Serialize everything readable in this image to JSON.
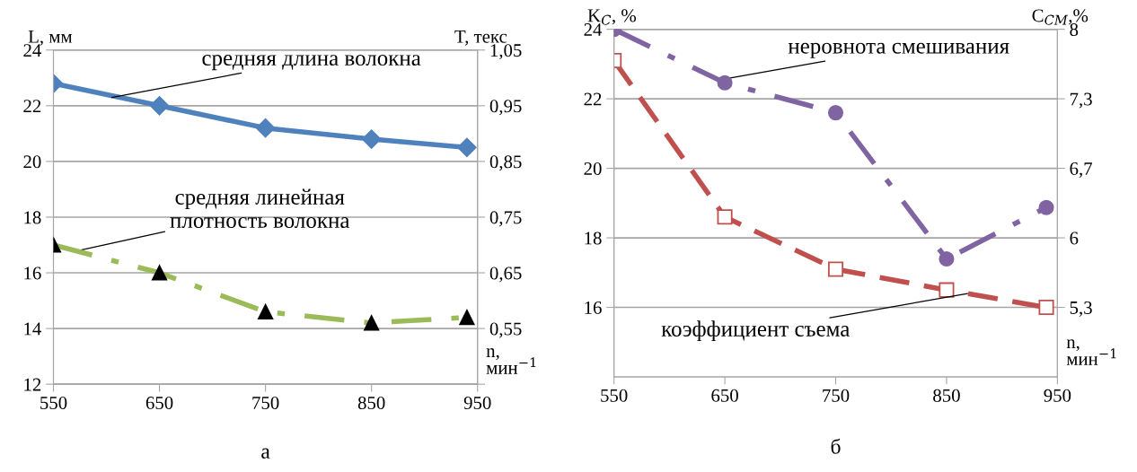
{
  "chart_data": [
    {
      "type": "line",
      "title": "а",
      "xlabel": "n,\nмин$^{−1}$",
      "ylabel": "L, мм",
      "y2label": "T, текс",
      "x": [
        550,
        650,
        750,
        850,
        940
      ],
      "xlim": [
        550,
        950
      ],
      "xticks": [
        550,
        650,
        750,
        850,
        950
      ],
      "ylim": [
        12,
        24
      ],
      "yticks": [
        12,
        14,
        16,
        18,
        20,
        22,
        24
      ],
      "y2lim": [
        0.45,
        1.05
      ],
      "y2ticks": [
        {
          "value": 0.45,
          "label": null
        },
        {
          "value": 0.55,
          "label": "0,55"
        },
        {
          "value": 0.65,
          "label": "0,65"
        },
        {
          "value": 0.75,
          "label": "0,75"
        },
        {
          "value": 0.85,
          "label": "0,85"
        },
        {
          "value": 0.95,
          "label": "0,95"
        },
        {
          "value": 1.05,
          "label": "1,05"
        }
      ],
      "grid": "y",
      "legend": false,
      "series": [
        {
          "color": "#4f81bd",
          "values": [
            22.8,
            22.0,
            21.2,
            20.8,
            20.5
          ],
          "marker": "diamond",
          "line_style": "solid"
        },
        {
          "color": "#9bbb59",
          "values": [
            0.7,
            0.65,
            0.58,
            0.56,
            0.57
          ],
          "marker": "triangle",
          "line_style": "dashdot",
          "axis": "y2"
        }
      ],
      "annotations": [
        {
          "text": "средняя длина волокна",
          "x": 605,
          "y": 22.3
        },
        {
          "text": "средняя линейная\nплотность волокна",
          "x": 574,
          "y": 16.8
        }
      ]
    },
    {
      "type": "line",
      "title": "б",
      "xlabel": "n,\nмин$^{−1}$",
      "ylabel": "K$_{С}$, %",
      "y2label": "C$_{СМ}$,%",
      "x": [
        550,
        650,
        750,
        850,
        940
      ],
      "xlim": [
        550,
        950
      ],
      "xticks": [
        550,
        650,
        750,
        850,
        950
      ],
      "ylim": [
        14,
        24
      ],
      "yticks": [
        16,
        18,
        20,
        22,
        24
      ],
      "y2lim": [
        4.625,
        8
      ],
      "y2ticks": [
        {
          "value": 5.3,
          "label": "5,3"
        },
        {
          "value": 5.975,
          "label": "6"
        },
        {
          "value": 6.65,
          "label": "6,7"
        },
        {
          "value": 7.325,
          "label": "7,3"
        },
        {
          "value": 8,
          "label": "8"
        }
      ],
      "grid": "y",
      "legend": false,
      "series": [
        {
          "color": "#8064a2",
          "values": [
            8.0,
            7.48,
            7.19,
            5.77,
            6.27
          ],
          "marker": "circle",
          "line_style": "dashdot",
          "axis": "y2"
        },
        {
          "color": "#c0504d",
          "values": [
            23.1,
            18.6,
            17.1,
            16.5,
            16.0
          ],
          "marker": "square",
          "line_style": "dashed"
        }
      ],
      "annotations": [
        {
          "text": "неровнота смешивания",
          "x": 655,
          "y": 22.6
        },
        {
          "text": "коэффициент съема",
          "x": 869,
          "y": 16.4
        }
      ]
    }
  ]
}
